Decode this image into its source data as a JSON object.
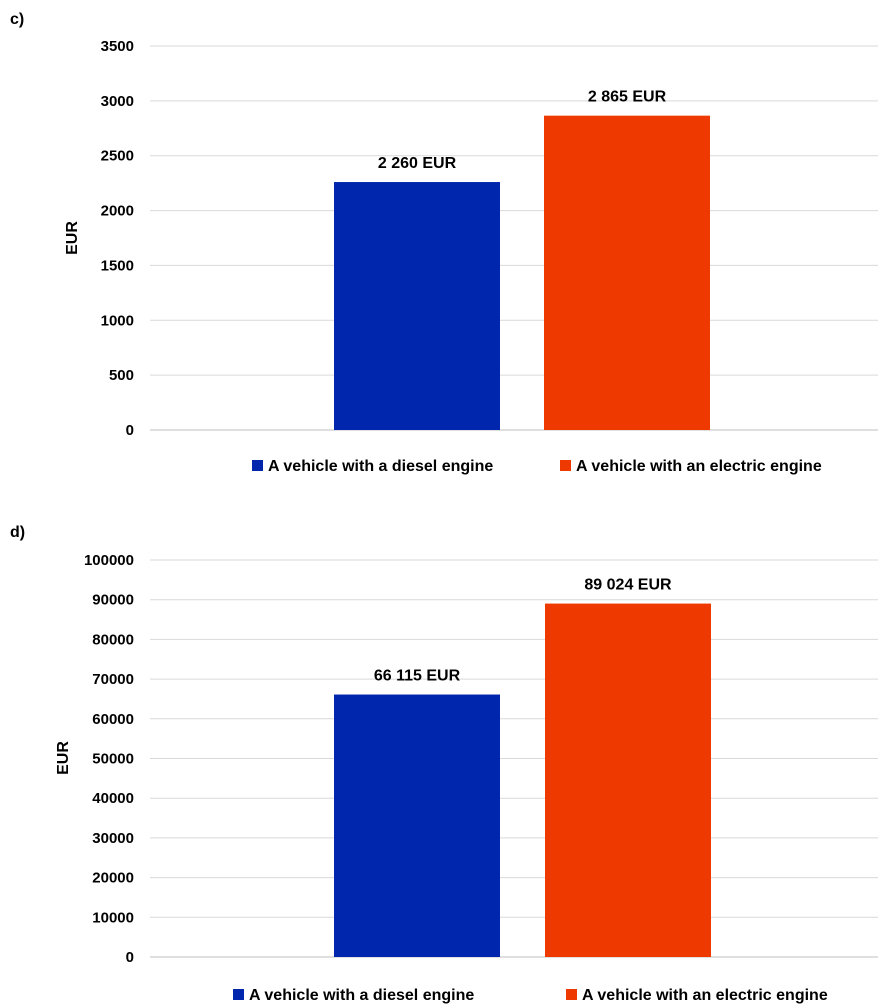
{
  "chart_data": [
    {
      "type": "bar",
      "panel_label": "c)",
      "categories": [
        ""
      ],
      "series": [
        {
          "name": "A vehicle with a diesel engine",
          "values": [
            2260
          ],
          "color": "#0026AD",
          "data_label": "2 260 EUR"
        },
        {
          "name": "A vehicle with an electric engine",
          "values": [
            2865
          ],
          "color": "#EE3A00",
          "data_label": "2 865 EUR"
        }
      ],
      "ylabel": "EUR",
      "xlabel": "",
      "ylim": [
        0,
        3500
      ],
      "yticks": [
        0,
        500,
        1000,
        1500,
        2000,
        2500,
        3000,
        3500
      ],
      "grid": true,
      "legend": "bottom"
    },
    {
      "type": "bar",
      "panel_label": "d)",
      "categories": [
        ""
      ],
      "series": [
        {
          "name": "A vehicle with a diesel engine",
          "values": [
            66115
          ],
          "color": "#0026AD",
          "data_label": "66 115 EUR"
        },
        {
          "name": "A vehicle with an electric engine",
          "values": [
            89024
          ],
          "color": "#EE3A00",
          "data_label": "89 024 EUR"
        }
      ],
      "ylabel": "EUR",
      "xlabel": "",
      "ylim": [
        0,
        100000
      ],
      "yticks": [
        0,
        10000,
        20000,
        30000,
        40000,
        50000,
        60000,
        70000,
        80000,
        90000,
        100000
      ],
      "grid": true,
      "legend": "bottom"
    }
  ]
}
